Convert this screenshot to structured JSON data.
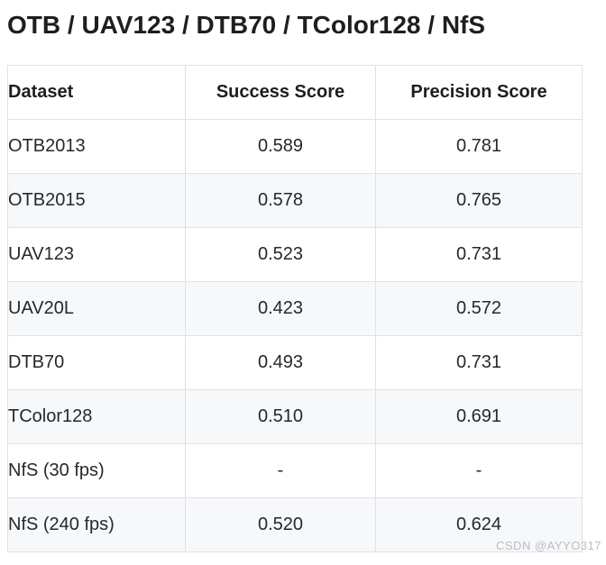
{
  "page": {
    "title": "OTB / UAV123 / DTB70 / TColor128 / NfS",
    "watermark": "CSDN @AYYO317"
  },
  "table": {
    "columns": [
      "Dataset",
      "Success Score",
      "Precision Score"
    ],
    "rows": [
      {
        "dataset": "OTB2013",
        "success": "0.589",
        "precision": "0.781"
      },
      {
        "dataset": "OTB2015",
        "success": "0.578",
        "precision": "0.765"
      },
      {
        "dataset": "UAV123",
        "success": "0.523",
        "precision": "0.731"
      },
      {
        "dataset": "UAV20L",
        "success": "0.423",
        "precision": "0.572"
      },
      {
        "dataset": "DTB70",
        "success": "0.493",
        "precision": "0.731"
      },
      {
        "dataset": "TColor128",
        "success": "0.510",
        "precision": "0.691"
      },
      {
        "dataset": "NfS (30 fps)",
        "success": "-",
        "precision": "-"
      },
      {
        "dataset": "NfS (240 fps)",
        "success": "0.520",
        "precision": "0.624"
      }
    ]
  },
  "colors": {
    "stripe": "#f6f8fa",
    "border": "#dfe2e6",
    "text": "#24292e",
    "title_text": "#1c1e21",
    "watermark_text": "#b9bdc4",
    "background": "#ffffff"
  }
}
